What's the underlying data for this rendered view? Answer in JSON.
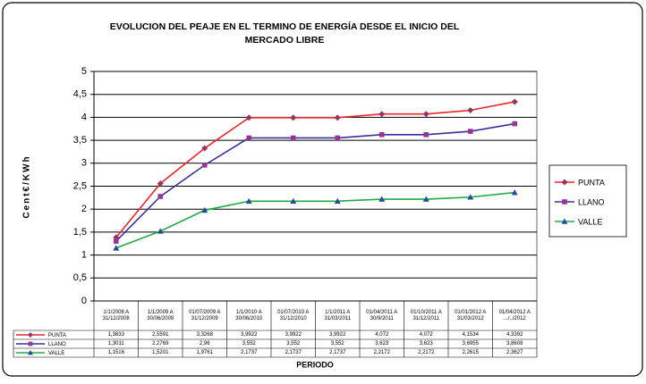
{
  "chart_data": {
    "type": "line",
    "title": [
      "EVOLUCION DEL PEAJE EN EL TERMINO DE ENERGÍA DESDE EL INICIO DEL",
      "MERCADO LIBRE"
    ],
    "ylabel": "Cent€/KWh",
    "xlabel": "PERIODO",
    "categories": [
      "1/1/2008 A 31/12/2008",
      "1/1/2009 A 30/06/2009",
      "01/07/2009 A 31/12/2009",
      "1/1/2010 A 30/06/2010",
      "01/07/2010 A 31/12/2010",
      "1/1/2011 A 31/03/2011",
      "01/04/2011 A 30/9/2011",
      "01/10/2011 A 31/12/2011",
      "01/01/2012 A 31/03/2012",
      "01/04/2012 A .../../2012"
    ],
    "series": [
      {
        "name": "PUNTA",
        "color": "#e8262a",
        "marker": "diamond",
        "marker_color": "#993366",
        "values": [
          1.3833,
          2.5591,
          3.3268,
          3.9922,
          3.9922,
          3.9922,
          4.072,
          4.072,
          4.1534,
          4.3392
        ],
        "value_labels": [
          "1,3833",
          "2,5591",
          "3,3268",
          "3,9922",
          "3,9922",
          "3,9922",
          "4,072",
          "4,072",
          "4,1534",
          "4,3392"
        ]
      },
      {
        "name": "LLANO",
        "color": "#333399",
        "marker": "square",
        "marker_color": "#993399",
        "values": [
          1.3011,
          2.2769,
          2.96,
          3.552,
          3.552,
          3.552,
          3.623,
          3.623,
          3.6955,
          3.8608
        ],
        "value_labels": [
          "1,3011",
          "2,2769",
          "2,96",
          "3,552",
          "3,552",
          "3,552",
          "3,623",
          "3,623",
          "3,6955",
          "3,8608"
        ]
      },
      {
        "name": "VALLE",
        "color": "#22aa44",
        "marker": "triangle",
        "marker_color": "#1f4e9a",
        "values": [
          1.1516,
          1.5201,
          1.9761,
          2.1737,
          2.1737,
          2.1737,
          2.2172,
          2.2172,
          2.2615,
          2.3627
        ],
        "value_labels": [
          "1,1516",
          "1,5201",
          "1,9761",
          "2,1737",
          "2,1737",
          "2,1737",
          "2,2172",
          "2,2172",
          "2,2615",
          "2,3627"
        ]
      }
    ],
    "ylim": [
      0,
      5
    ],
    "yticks": [
      0,
      {
        "value": 0.5,
        "label": "0,5"
      },
      1,
      {
        "value": 1.5,
        "label": "1,5"
      },
      2,
      {
        "value": 2.5,
        "label": "2,5"
      },
      3,
      {
        "value": 3.5,
        "label": "3,5"
      },
      4,
      {
        "value": 4.5,
        "label": "4,5"
      },
      5
    ],
    "grid": true,
    "legend": "right"
  }
}
